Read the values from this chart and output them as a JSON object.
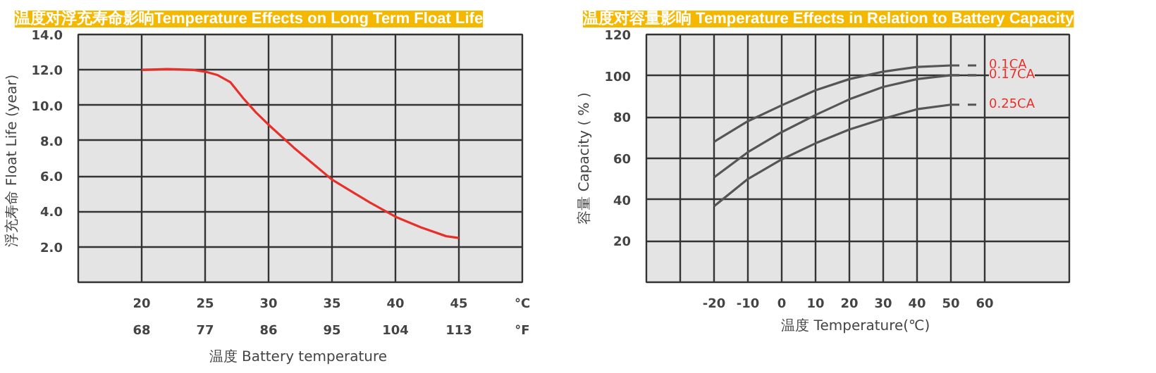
{
  "chart_data": [
    {
      "type": "line",
      "title": "温度对浮充寿命影响Temperature Effects on Long Term Float Life",
      "xlabel": "温度  Battery temperature",
      "ylabel": "浮充寿命  Float Life (year)",
      "xlim": [
        15,
        50
      ],
      "ylim": [
        0,
        14
      ],
      "xticks": [
        20,
        25,
        30,
        35,
        40,
        45,
        {
          "value": 50,
          "label": "°C"
        }
      ],
      "x2lim": [
        59,
        122
      ],
      "x2ticks": [
        68,
        77,
        86,
        95,
        104,
        113,
        {
          "value": 122,
          "label": "°F"
        }
      ],
      "yticks": [
        {
          "value": 2,
          "label": "2.0"
        },
        {
          "value": 4,
          "label": "4.0"
        },
        {
          "value": 6,
          "label": "6.0"
        },
        {
          "value": 8,
          "label": "8.0"
        },
        {
          "value": 10,
          "label": "10.0"
        },
        {
          "value": 12,
          "label": "12.0"
        },
        {
          "value": 14,
          "label": "14.0"
        }
      ],
      "grid": true,
      "series": [
        {
          "color": "#e8302a",
          "x": [
            20,
            22,
            24,
            25,
            26,
            27,
            28,
            29,
            30,
            32,
            35,
            38,
            40,
            42,
            44,
            45
          ],
          "values": [
            12.0,
            12.05,
            12.0,
            11.9,
            11.7,
            11.3,
            10.4,
            9.6,
            8.9,
            7.6,
            5.8,
            4.5,
            3.7,
            3.1,
            2.6,
            2.5
          ]
        }
      ]
    },
    {
      "type": "line",
      "title": "温度对容量影响 Temperature Effects in Relation to Battery Capacity",
      "xlabel": "温度  Temperature(℃)",
      "ylabel": "容量 Capacity ( % )",
      "xlim": [
        -40,
        85
      ],
      "ylim": [
        0,
        120
      ],
      "xticks": [
        {
          "value": -40,
          "label": null
        },
        {
          "value": -30,
          "label": null
        },
        -20,
        -10,
        0,
        10,
        20,
        30,
        40,
        50,
        60
      ],
      "yticks": [
        20,
        40,
        60,
        80,
        100,
        120
      ],
      "grid": true,
      "series": [
        {
          "color": "#555555",
          "x": [
            -20,
            -10,
            0,
            10,
            20,
            30,
            40,
            50
          ],
          "values": [
            68,
            78,
            85.7,
            93,
            98.4,
            102,
            104.3,
            105
          ]
        },
        {
          "name": "0.1CA",
          "color": "#555555",
          "x": [
            50,
            60
          ],
          "values": [
            105,
            105
          ],
          "line_style": "dashed"
        },
        {
          "color": "#555555",
          "x": [
            -20,
            -10,
            0,
            10,
            20,
            30,
            40,
            50
          ],
          "values": [
            50.8,
            63,
            72.7,
            81,
            88.6,
            94.6,
            98.4,
            100.3
          ]
        },
        {
          "name": "0.17CA",
          "color": "#555555",
          "x": [
            50,
            60
          ],
          "values": [
            100.3,
            100.3
          ],
          "line_style": "dashed"
        },
        {
          "color": "#555555",
          "x": [
            -20,
            -10,
            0,
            10,
            20,
            30,
            40,
            50
          ],
          "values": [
            36.8,
            50,
            59.5,
            67.3,
            74,
            79.2,
            83.8,
            86
          ]
        },
        {
          "name": "0.25CA",
          "color": "#555555",
          "x": [
            50,
            60
          ],
          "values": [
            86,
            86
          ],
          "line_style": "dashed"
        }
      ]
    }
  ]
}
